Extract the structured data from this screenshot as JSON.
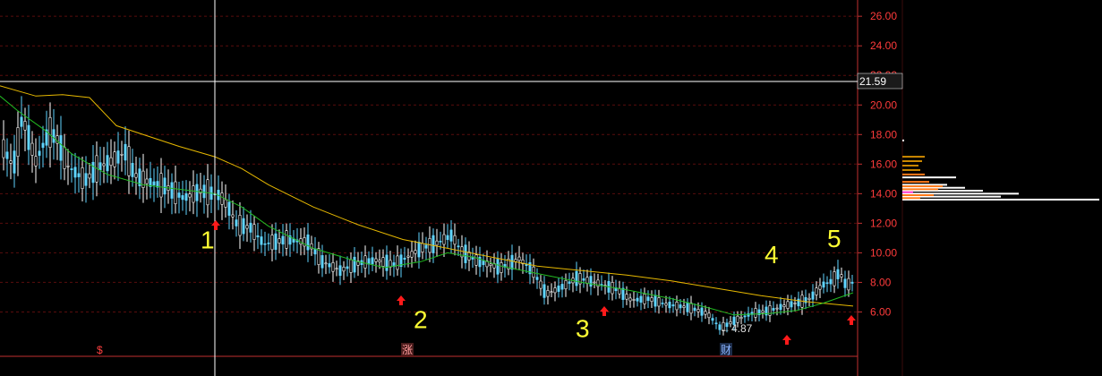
{
  "chart_data": {
    "type": "candlestick",
    "y_ticks": [
      "6.00",
      "8.00",
      "10.00",
      "12.00",
      "14.00",
      "16.00",
      "18.00",
      "20.00",
      "22.00",
      "24.00",
      "26.00"
    ],
    "ylim": [
      3.0,
      27.1
    ],
    "grid": true,
    "cursor": {
      "price": 21.59,
      "label": "21.59"
    },
    "wave_labels": [
      {
        "text": "1",
        "price": 10.9
      },
      {
        "text": "2",
        "price": 5.5
      },
      {
        "text": "3",
        "price": 4.9
      },
      {
        "text": "4",
        "price": 9.9
      },
      {
        "text": "5",
        "price": 11.0
      }
    ],
    "low_annotation": {
      "text": "4.87",
      "price": 4.87
    },
    "signal_arrows": [
      "up",
      "up",
      "up",
      "up",
      "up"
    ],
    "event_markers": [
      {
        "text": "$",
        "color": "#ff4040"
      },
      {
        "text": "涨",
        "color": "#ff8080"
      },
      {
        "text": "财",
        "color": "#8ab4ff"
      }
    ],
    "series": [
      {
        "type": "candles",
        "points": [
          [
            0,
            17.5
          ],
          [
            15,
            15.8
          ],
          [
            25,
            19.2
          ],
          [
            40,
            16.2
          ],
          [
            55,
            18.2
          ],
          [
            65,
            17.6
          ],
          [
            75,
            15.9
          ],
          [
            95,
            14.9
          ],
          [
            110,
            15.8
          ],
          [
            125,
            16.2
          ],
          [
            140,
            16.8
          ],
          [
            150,
            15.3
          ],
          [
            165,
            14.8
          ],
          [
            185,
            14.5
          ],
          [
            205,
            13.7
          ],
          [
            225,
            14.2
          ],
          [
            245,
            13.9
          ],
          [
            255,
            13.1
          ],
          [
            265,
            11.9
          ],
          [
            280,
            11.7
          ],
          [
            295,
            10.6
          ],
          [
            320,
            10.9
          ],
          [
            345,
            10.7
          ],
          [
            360,
            9.4
          ],
          [
            380,
            8.8
          ],
          [
            400,
            9.3
          ],
          [
            420,
            9.5
          ],
          [
            440,
            9.2
          ],
          [
            455,
            9.7
          ],
          [
            470,
            10.3
          ],
          [
            490,
            10.7
          ],
          [
            505,
            11.2
          ],
          [
            515,
            10.1
          ],
          [
            535,
            9.4
          ],
          [
            560,
            9.0
          ],
          [
            580,
            9.6
          ],
          [
            595,
            8.8
          ],
          [
            610,
            7.2
          ],
          [
            625,
            7.6
          ],
          [
            645,
            8.3
          ],
          [
            665,
            8.0
          ],
          [
            690,
            7.5
          ],
          [
            705,
            6.8
          ],
          [
            725,
            6.9
          ],
          [
            745,
            6.5
          ],
          [
            770,
            6.3
          ],
          [
            790,
            5.9
          ],
          [
            805,
            4.9
          ],
          [
            820,
            5.4
          ],
          [
            840,
            5.9
          ],
          [
            860,
            6.1
          ],
          [
            875,
            6.4
          ],
          [
            890,
            6.6
          ],
          [
            905,
            6.9
          ],
          [
            918,
            7.8
          ],
          [
            930,
            8.1
          ],
          [
            938,
            8.7
          ],
          [
            945,
            7.8
          ],
          [
            953,
            8.0
          ]
        ]
      },
      {
        "type": "line",
        "color": "#e6b800",
        "points": [
          [
            0,
            21.3
          ],
          [
            40,
            20.6
          ],
          [
            70,
            20.7
          ],
          [
            100,
            20.5
          ],
          [
            130,
            18.6
          ],
          [
            200,
            17.2
          ],
          [
            240,
            16.5
          ],
          [
            270,
            15.7
          ],
          [
            300,
            14.6
          ],
          [
            350,
            13.1
          ],
          [
            400,
            11.9
          ],
          [
            450,
            10.9
          ],
          [
            500,
            10.3
          ],
          [
            550,
            9.7
          ],
          [
            600,
            9.1
          ],
          [
            650,
            8.8
          ],
          [
            700,
            8.5
          ],
          [
            750,
            8.1
          ],
          [
            800,
            7.6
          ],
          [
            850,
            7.1
          ],
          [
            900,
            6.7
          ],
          [
            953,
            6.4
          ]
        ]
      },
      {
        "type": "line",
        "color": "#22bb22",
        "points": [
          [
            0,
            20.6
          ],
          [
            20,
            19.6
          ],
          [
            50,
            18.3
          ],
          [
            80,
            16.7
          ],
          [
            120,
            15.3
          ],
          [
            160,
            14.6
          ],
          [
            200,
            14.3
          ],
          [
            240,
            14.0
          ],
          [
            270,
            13.1
          ],
          [
            300,
            11.8
          ],
          [
            350,
            10.3
          ],
          [
            400,
            9.4
          ],
          [
            430,
            9.0
          ],
          [
            470,
            9.4
          ],
          [
            500,
            10.0
          ],
          [
            530,
            9.7
          ],
          [
            560,
            9.1
          ],
          [
            600,
            8.6
          ],
          [
            650,
            8.0
          ],
          [
            700,
            7.5
          ],
          [
            750,
            6.9
          ],
          [
            790,
            6.3
          ],
          [
            820,
            5.8
          ],
          [
            860,
            5.9
          ],
          [
            890,
            6.1
          ],
          [
            920,
            6.6
          ],
          [
            953,
            7.3
          ]
        ]
      }
    ],
    "volume_profile": {
      "levels": [
        {
          "price": 13.6,
          "length": 220,
          "color": "#ffffff"
        },
        {
          "price": 13.8,
          "length": 110,
          "color": "#ffffff"
        },
        {
          "price": 14.0,
          "length": 130,
          "color": "#ffffff"
        },
        {
          "price": 14.2,
          "length": 90,
          "color": "#ffffff"
        },
        {
          "price": 14.4,
          "length": 70,
          "color": "#ffffff"
        },
        {
          "price": 14.6,
          "length": 50,
          "color": "#ffffff"
        },
        {
          "price": 13.7,
          "length": 20,
          "color": "#ff7a1a"
        },
        {
          "price": 13.9,
          "length": 35,
          "color": "#ff7a1a"
        },
        {
          "price": 14.1,
          "length": 12,
          "color": "#ff33cc"
        },
        {
          "price": 14.3,
          "length": 40,
          "color": "#ff7a1a"
        },
        {
          "price": 14.5,
          "length": 45,
          "color": "#ff7a1a"
        },
        {
          "price": 14.8,
          "length": 30,
          "color": "#ff7a1a"
        },
        {
          "price": 15.1,
          "length": 60,
          "color": "#ffffff"
        },
        {
          "price": 15.3,
          "length": 25,
          "color": "#ff7a1a"
        },
        {
          "price": 15.6,
          "length": 20,
          "color": "#cc8800"
        },
        {
          "price": 15.9,
          "length": 18,
          "color": "#cc8800"
        },
        {
          "price": 16.2,
          "length": 22,
          "color": "#cc8800"
        },
        {
          "price": 16.5,
          "length": 25,
          "color": "#cc8800"
        },
        {
          "price": 17.6,
          "length": 2,
          "color": "#ffffff"
        }
      ]
    }
  }
}
